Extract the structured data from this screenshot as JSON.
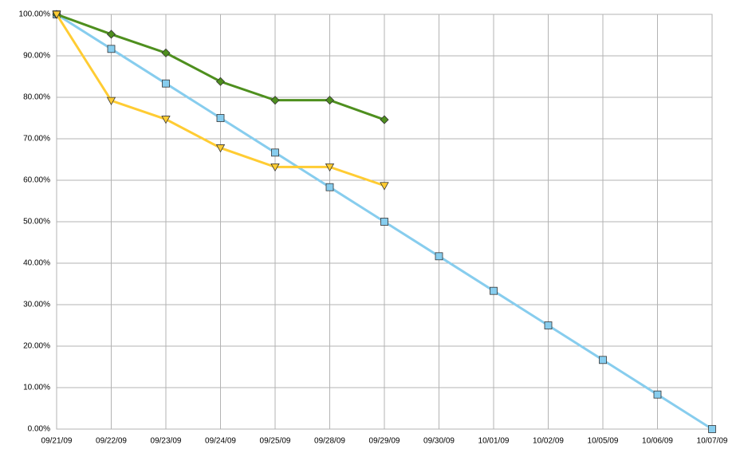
{
  "chart_data": {
    "type": "line",
    "categories": [
      "09/21/09",
      "09/22/09",
      "09/23/09",
      "09/24/09",
      "09/25/09",
      "09/28/09",
      "09/29/09",
      "09/30/09",
      "10/01/09",
      "10/02/09",
      "10/05/09",
      "10/06/09",
      "10/07/09"
    ],
    "series": [
      {
        "color": "#87cdee",
        "marker": "square",
        "values": [
          100,
          91.67,
          83.33,
          75,
          66.67,
          58.33,
          50,
          41.67,
          33.33,
          25,
          16.67,
          8.33,
          0
        ]
      },
      {
        "color": "#4e8f1e",
        "marker": "diamond",
        "values": [
          100,
          95.2,
          90.7,
          83.8,
          79.3,
          79.3,
          74.6,
          null,
          null,
          null,
          null,
          null,
          null
        ]
      },
      {
        "color": "#ffcc33",
        "marker": "triangle-down",
        "values": [
          100,
          79.2,
          74.7,
          67.8,
          63.2,
          63.2,
          58.7,
          null,
          null,
          null,
          null,
          null,
          null
        ]
      }
    ],
    "ylim": [
      0,
      100
    ],
    "yticks": [
      {
        "value": 0,
        "label": "0.00%"
      },
      {
        "value": 10,
        "label": "10.00%"
      },
      {
        "value": 20,
        "label": "20.00%"
      },
      {
        "value": 30,
        "label": "30.00%"
      },
      {
        "value": 40,
        "label": "40.00%"
      },
      {
        "value": 50,
        "label": "50.00%"
      },
      {
        "value": 60,
        "label": "60.00%"
      },
      {
        "value": 70,
        "label": "70.00%"
      },
      {
        "value": 80,
        "label": "80.00%"
      },
      {
        "value": 90,
        "label": "90.00%"
      },
      {
        "value": 100,
        "label": "100.00%"
      }
    ],
    "grid": true
  }
}
